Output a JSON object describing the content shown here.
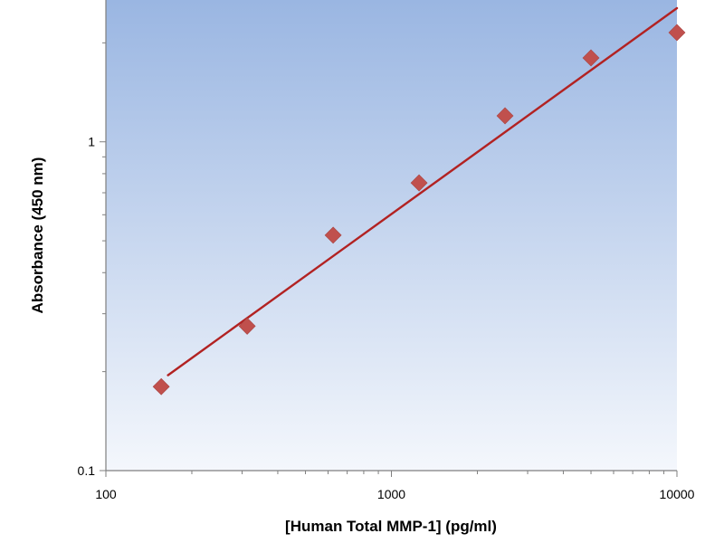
{
  "chart_data": {
    "type": "scatter",
    "title": "",
    "xlabel": "[Human Total MMP-1] (pg/ml)",
    "ylabel": "Absorbance (450 nm)",
    "x_scale": "log",
    "y_scale": "log",
    "xlim": [
      100,
      10000
    ],
    "ylim": [
      0.1,
      2.7
    ],
    "x_ticks": [
      100,
      1000,
      10000
    ],
    "x_tick_labels": [
      "100",
      "1000",
      "10000"
    ],
    "y_ticks": [
      0.1,
      1
    ],
    "y_tick_labels": [
      "0.1",
      "1"
    ],
    "grid": false,
    "legend": "none",
    "series": [
      {
        "kind": "points",
        "marker": "diamond",
        "color": "#c0504d",
        "x": [
          156.25,
          312.5,
          625,
          1250,
          2500,
          5000,
          10000
        ],
        "y": [
          0.18,
          0.275,
          0.52,
          0.75,
          1.2,
          1.8,
          2.15
        ]
      },
      {
        "kind": "fit-line",
        "color": "#b22222",
        "x": [
          165,
          10000
        ],
        "y": [
          0.195,
          2.55
        ]
      }
    ],
    "colors": {
      "plot_gradient_top": "#9ab6e2",
      "plot_gradient_bottom": "#f4f7fc",
      "marker": "#c0504d",
      "line": "#b22222"
    }
  }
}
